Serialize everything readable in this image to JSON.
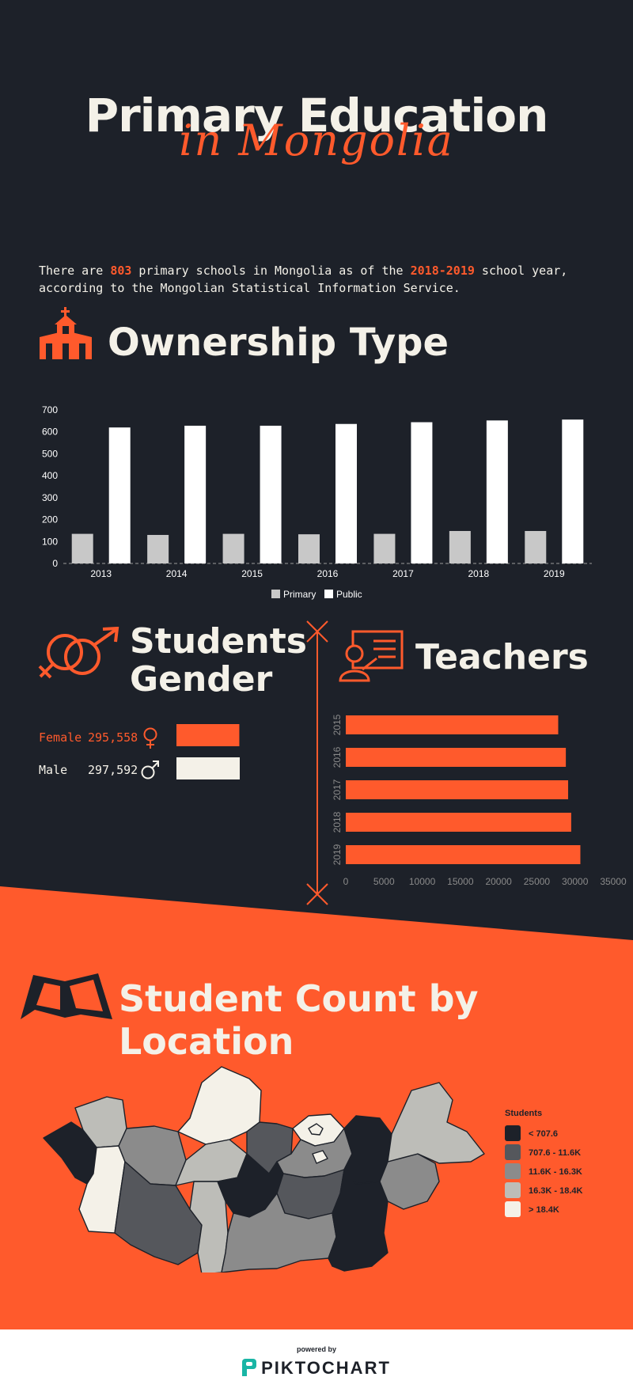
{
  "header": {
    "title": "Primary Education",
    "subtitle": "in Mongolia"
  },
  "intro": {
    "part1": "There are ",
    "count": "803",
    "part2": " primary schools in Mongolia as of the ",
    "year": "2018-2019",
    "part3": " school year, according to the Mongolian Statistical Information Service."
  },
  "ownership": {
    "title": "Ownership Type"
  },
  "gender": {
    "title_line1": "Students",
    "title_line2": "Gender",
    "female_label": "Female",
    "female_value": "295,558",
    "male_label": "Male",
    "male_value": "297,592"
  },
  "teachers": {
    "title": "Teachers"
  },
  "location": {
    "title": "Student Count by Location"
  },
  "footer": {
    "powered": "powered by",
    "brand": "PIKTOCHART"
  },
  "colors": {
    "dark": "#1d2129",
    "orange": "#ff5a2c",
    "cream": "#f4f1e8"
  },
  "chart_data": [
    {
      "type": "bar",
      "categories": [
        "2013",
        "2014",
        "2015",
        "2016",
        "2017",
        "2018",
        "2019"
      ],
      "series": [
        {
          "name": "Primary",
          "values": [
            135,
            130,
            135,
            133,
            135,
            148,
            148
          ],
          "color": "#c8c8c8"
        },
        {
          "name": "Public",
          "values": [
            620,
            628,
            628,
            636,
            644,
            652,
            656
          ],
          "color": "#ffffff"
        }
      ],
      "ylim": [
        0,
        700
      ],
      "yticks": [
        0,
        100,
        200,
        300,
        400,
        500,
        600,
        700
      ],
      "legend": "bottom",
      "grid": false
    },
    {
      "type": "bar",
      "orientation": "horizontal",
      "categories": [
        "2015",
        "2016",
        "2017",
        "2018",
        "2019"
      ],
      "values": [
        27800,
        28800,
        29100,
        29500,
        30700
      ],
      "xlim": [
        0,
        35000
      ],
      "xticks": [
        0,
        5000,
        10000,
        15000,
        20000,
        25000,
        30000,
        35000
      ],
      "color": "#ff5a2c"
    },
    {
      "type": "bar",
      "orientation": "horizontal",
      "categories": [
        "Female",
        "Male"
      ],
      "values": [
        295558,
        297592
      ],
      "colors": [
        "#ff5a2c",
        "#f4f1e8"
      ]
    },
    {
      "type": "heatmap",
      "legend_title": "Students",
      "legend": [
        {
          "label": "< 707.6",
          "color": "#1d2129"
        },
        {
          "label": "707.6 - 11.6K",
          "color": "#55575c"
        },
        {
          "label": "11.6K - 16.3K",
          "color": "#8b8b8b"
        },
        {
          "label": "16.3K - 18.4K",
          "color": "#bdbdb8"
        },
        {
          "label": "> 18.4K",
          "color": "#f4f1e8"
        }
      ]
    }
  ]
}
